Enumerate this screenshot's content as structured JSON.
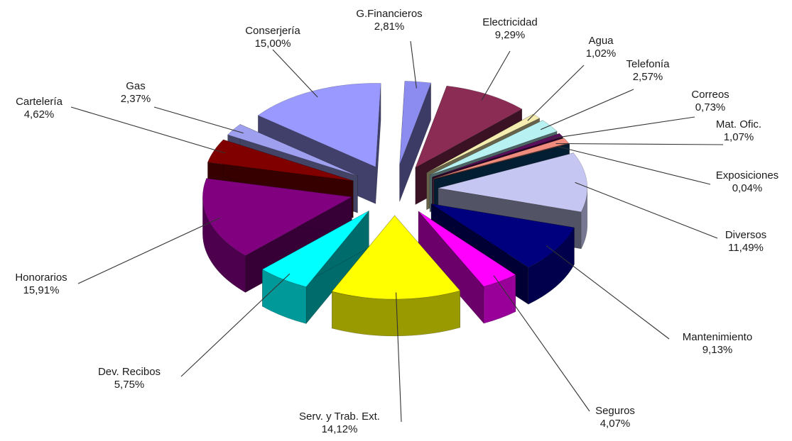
{
  "chart_data": {
    "type": "pie",
    "style": "3d-exploded",
    "slices": [
      {
        "name": "G.Financieros",
        "value": 2.81,
        "label": "2,81%",
        "color": "#8c8cf0"
      },
      {
        "name": "Electricidad",
        "value": 9.29,
        "label": "9,29%",
        "color": "#8b2c55"
      },
      {
        "name": "Agua",
        "value": 1.02,
        "label": "1,02%",
        "color": "#f5ecb0"
      },
      {
        "name": "Telefonía",
        "value": 2.57,
        "label": "2,57%",
        "color": "#b7f1f1"
      },
      {
        "name": "Correos",
        "value": 0.73,
        "label": "0,73%",
        "color": "#5a0f5a"
      },
      {
        "name": "Mat. Ofic.",
        "value": 1.07,
        "label": "1,07%",
        "color": "#f08c7d"
      },
      {
        "name": "Exposiciones",
        "value": 0.04,
        "label": "0,04%",
        "color": "#06467a"
      },
      {
        "name": "Diversos",
        "value": 11.49,
        "label": "11,49%",
        "color": "#c6c6f2"
      },
      {
        "name": "Mantenimiento",
        "value": 9.13,
        "label": "9,13%",
        "color": "#00007f"
      },
      {
        "name": "Seguros",
        "value": 4.07,
        "label": "4,07%",
        "color": "#ff00ff"
      },
      {
        "name": "Serv. y Trab. Ext.",
        "value": 14.12,
        "label": "14,12%",
        "color": "#ffff00"
      },
      {
        "name": "Dev. Recibos",
        "value": 5.75,
        "label": "5,75%",
        "color": "#00ffff"
      },
      {
        "name": "Honorarios",
        "value": 15.91,
        "label": "15,91%",
        "color": "#800080"
      },
      {
        "name": "Cartelería",
        "value": 4.62,
        "label": "4,62%",
        "color": "#800000"
      },
      {
        "name": "Gas",
        "value": 2.37,
        "label": "2,37%",
        "color": "#9f9ff0"
      },
      {
        "name": "Conserjería",
        "value": 15.0,
        "label": "15,00%",
        "color": "#9999ff"
      }
    ]
  }
}
